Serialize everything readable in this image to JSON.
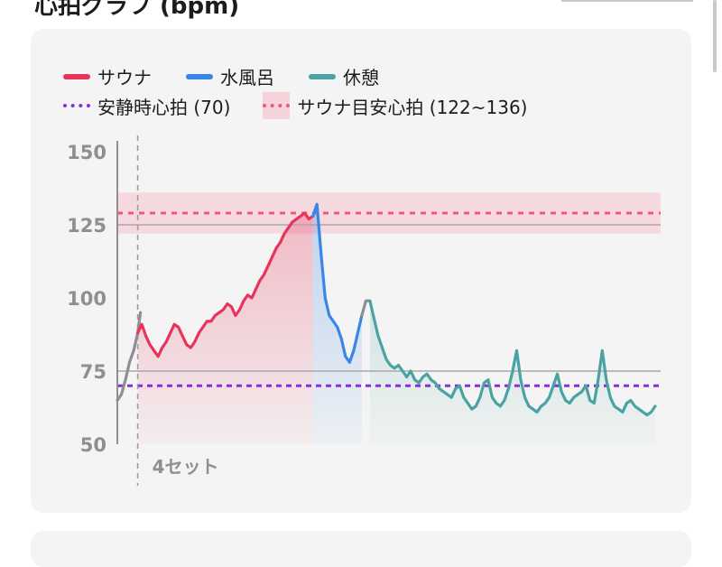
{
  "header": {
    "title": "心拍グラフ (bpm)"
  },
  "legend": {
    "sauna": "サウナ",
    "water_bath": "水風呂",
    "rest": "休憩",
    "resting_hr": "安静時心拍 (70)",
    "sauna_target": "サウナ目安心拍 (122~136)"
  },
  "colors": {
    "sauna": "#e8345a",
    "water_bath": "#3a86e8",
    "rest": "#4aa3a2",
    "transition": "#8e8e93",
    "resting_hr": "#8a2be2",
    "sauna_target": "#ea5a7a",
    "target_band": "#f6d3db"
  },
  "chart_data": {
    "type": "line",
    "xlabel": "",
    "ylabel": "",
    "ylim": [
      50,
      150
    ],
    "yticks": [
      50,
      75,
      100,
      125,
      150
    ],
    "grid": false,
    "legend_position": "top",
    "x_unit": "minutes",
    "xlim": [
      0,
      40
    ],
    "set_markers": [
      {
        "x": 1.5,
        "label": "4セット"
      }
    ],
    "reference_lines": [
      {
        "name": "安静時心拍 (70)",
        "y": 70,
        "style": "dotted"
      },
      {
        "y": 75,
        "style": "solid"
      },
      {
        "y": 125,
        "style": "solid"
      }
    ],
    "reference_bands": [
      {
        "name": "サウナ目安心拍 (122~136)",
        "y_min": 122,
        "y_max": 136,
        "center": 129
      }
    ],
    "series": [
      {
        "name": "",
        "key": "transition",
        "points": [
          [
            0,
            65
          ],
          [
            0.3,
            67
          ],
          [
            0.6,
            72
          ],
          [
            0.9,
            78
          ],
          [
            1.2,
            82
          ],
          [
            1.5,
            88
          ],
          [
            1.7,
            95
          ]
        ]
      },
      {
        "name": "サウナ",
        "key": "sauna",
        "points": [
          [
            1.5,
            88
          ],
          [
            1.8,
            91
          ],
          [
            2.1,
            87
          ],
          [
            2.4,
            84
          ],
          [
            2.7,
            82
          ],
          [
            3.0,
            80
          ],
          [
            3.3,
            83
          ],
          [
            3.6,
            85
          ],
          [
            3.9,
            88
          ],
          [
            4.2,
            91
          ],
          [
            4.5,
            90
          ],
          [
            4.8,
            87
          ],
          [
            5.1,
            84
          ],
          [
            5.4,
            83
          ],
          [
            5.7,
            85
          ],
          [
            6.0,
            88
          ],
          [
            6.3,
            90
          ],
          [
            6.6,
            92
          ],
          [
            6.9,
            92
          ],
          [
            7.2,
            94
          ],
          [
            7.5,
            95
          ],
          [
            7.8,
            96
          ],
          [
            8.1,
            98
          ],
          [
            8.4,
            97
          ],
          [
            8.7,
            94
          ],
          [
            9.0,
            96
          ],
          [
            9.3,
            99
          ],
          [
            9.6,
            101
          ],
          [
            9.9,
            100
          ],
          [
            10.2,
            103
          ],
          [
            10.5,
            106
          ],
          [
            10.8,
            108
          ],
          [
            11.1,
            111
          ],
          [
            11.4,
            114
          ],
          [
            11.7,
            117
          ],
          [
            12.0,
            119
          ],
          [
            12.3,
            122
          ],
          [
            12.6,
            124
          ],
          [
            12.9,
            126
          ],
          [
            13.2,
            127
          ],
          [
            13.5,
            128
          ],
          [
            13.8,
            129
          ],
          [
            14.1,
            127
          ],
          [
            14.4,
            128
          ]
        ]
      },
      {
        "name": "水風呂",
        "key": "water_bath",
        "points": [
          [
            14.4,
            128
          ],
          [
            14.7,
            132
          ],
          [
            15.0,
            115
          ],
          [
            15.3,
            100
          ],
          [
            15.6,
            94
          ],
          [
            15.9,
            92
          ],
          [
            16.2,
            90
          ],
          [
            16.5,
            86
          ],
          [
            16.8,
            80
          ],
          [
            17.1,
            78
          ],
          [
            17.4,
            82
          ],
          [
            17.7,
            88
          ],
          [
            18.0,
            94
          ]
        ]
      },
      {
        "name": "",
        "key": "transition",
        "points": [
          [
            18.0,
            94
          ],
          [
            18.3,
            99
          ],
          [
            18.6,
            99
          ]
        ]
      },
      {
        "name": "休憩",
        "key": "rest",
        "points": [
          [
            18.6,
            99
          ],
          [
            18.9,
            93
          ],
          [
            19.2,
            87
          ],
          [
            19.5,
            83
          ],
          [
            19.8,
            79
          ],
          [
            20.1,
            77
          ],
          [
            20.4,
            76
          ],
          [
            20.7,
            77
          ],
          [
            21.0,
            75
          ],
          [
            21.3,
            73
          ],
          [
            21.6,
            75
          ],
          [
            21.9,
            72
          ],
          [
            22.2,
            71
          ],
          [
            22.5,
            73
          ],
          [
            22.8,
            74
          ],
          [
            23.1,
            72
          ],
          [
            23.4,
            71
          ],
          [
            23.7,
            69
          ],
          [
            24.0,
            68
          ],
          [
            24.3,
            67
          ],
          [
            24.6,
            66
          ],
          [
            24.9,
            69
          ],
          [
            25.2,
            70
          ],
          [
            25.5,
            66
          ],
          [
            25.8,
            64
          ],
          [
            26.1,
            62
          ],
          [
            26.4,
            63
          ],
          [
            26.7,
            66
          ],
          [
            27.0,
            71
          ],
          [
            27.3,
            72
          ],
          [
            27.6,
            66
          ],
          [
            27.9,
            64
          ],
          [
            28.2,
            63
          ],
          [
            28.5,
            65
          ],
          [
            28.8,
            69
          ],
          [
            29.1,
            75
          ],
          [
            29.4,
            82
          ],
          [
            29.7,
            72
          ],
          [
            30.0,
            66
          ],
          [
            30.3,
            63
          ],
          [
            30.6,
            62
          ],
          [
            30.9,
            61
          ],
          [
            31.2,
            63
          ],
          [
            31.5,
            64
          ],
          [
            31.8,
            66
          ],
          [
            32.1,
            70
          ],
          [
            32.4,
            74
          ],
          [
            32.7,
            68
          ],
          [
            33.0,
            65
          ],
          [
            33.3,
            64
          ],
          [
            33.6,
            66
          ],
          [
            33.9,
            67
          ],
          [
            34.2,
            68
          ],
          [
            34.5,
            70
          ],
          [
            34.8,
            65
          ],
          [
            35.1,
            64
          ],
          [
            35.4,
            72
          ],
          [
            35.7,
            82
          ],
          [
            36.0,
            72
          ],
          [
            36.3,
            66
          ],
          [
            36.6,
            63
          ],
          [
            36.9,
            62
          ],
          [
            37.2,
            61
          ],
          [
            37.5,
            64
          ],
          [
            37.8,
            65
          ],
          [
            38.1,
            63
          ],
          [
            38.4,
            62
          ],
          [
            38.7,
            61
          ],
          [
            39.0,
            60
          ],
          [
            39.3,
            61
          ],
          [
            39.6,
            63
          ]
        ]
      }
    ]
  }
}
